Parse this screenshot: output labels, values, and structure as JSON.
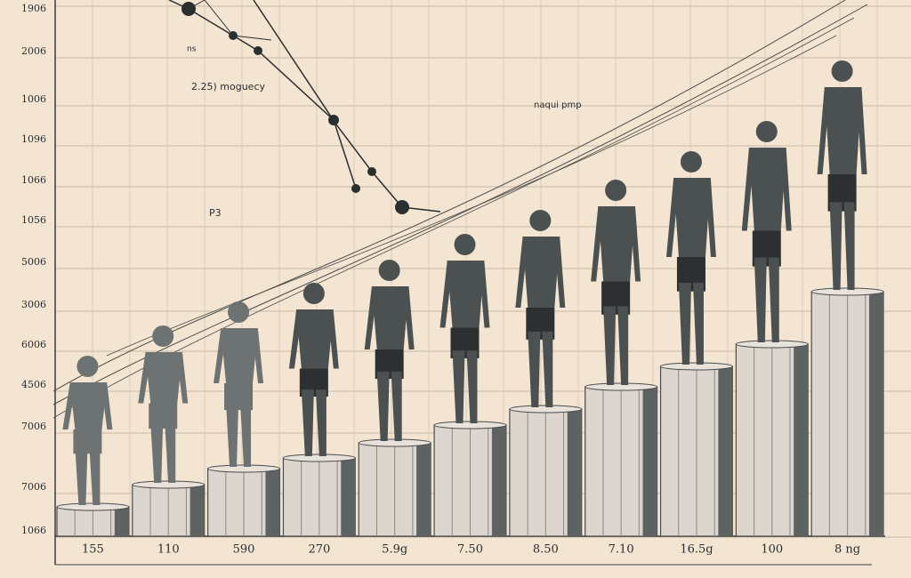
{
  "y_labels": [
    "1906",
    "2006",
    "1006",
    "1096",
    "1066",
    "1056",
    "5006",
    "3006",
    "6006",
    "4506",
    "7006",
    "7006",
    "1066"
  ],
  "x_labels": [
    "155",
    "110",
    "590",
    "270",
    "5.9g",
    "7.50",
    "8.50",
    "7.10",
    "16.5g",
    "100",
    "8 ng"
  ],
  "annotations": [
    "ns",
    "2.25) moguecy",
    "P3",
    "naqui pmp"
  ]
}
